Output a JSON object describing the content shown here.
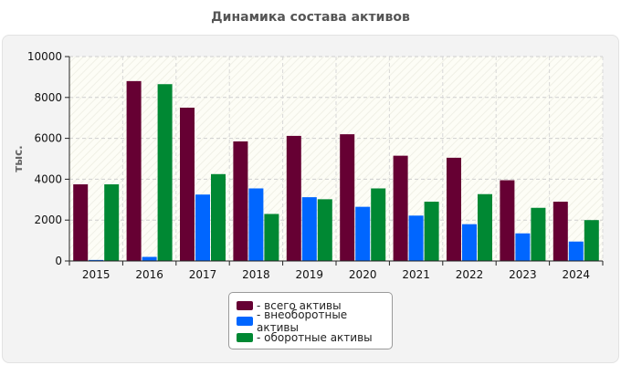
{
  "chart_data": {
    "type": "bar",
    "title": "Динамика состава активов",
    "xlabel": "",
    "ylabel": "тыс.",
    "categories": [
      "2015",
      "2016",
      "2017",
      "2018",
      "2019",
      "2020",
      "2021",
      "2022",
      "2023",
      "2024"
    ],
    "series": [
      {
        "name": "- всего активы",
        "color": "#660033",
        "values": [
          3750,
          8800,
          7500,
          5850,
          6120,
          6200,
          5150,
          5050,
          3950,
          2900
        ]
      },
      {
        "name": "- внеоборотные активы",
        "color": "#0066ff",
        "values": [
          50,
          200,
          3250,
          3550,
          3120,
          2650,
          2220,
          1800,
          1350,
          950
        ]
      },
      {
        "name": "- оборотные активы",
        "color": "#008833",
        "values": [
          3750,
          8650,
          4250,
          2300,
          3020,
          3550,
          2900,
          3270,
          2600,
          2000
        ]
      }
    ],
    "ylim": [
      0,
      10000
    ],
    "yticks": [
      0,
      2000,
      4000,
      6000,
      8000,
      10000
    ],
    "grid": true,
    "legend_position": "bottom-center"
  }
}
